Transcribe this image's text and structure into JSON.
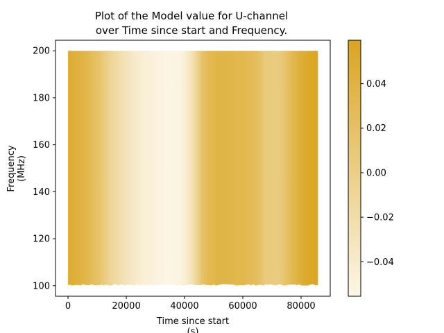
{
  "chart_data": {
    "type": "heatmap",
    "title_lines": [
      "Plot of the Model value for U-channel",
      "over Time since start and Frequency."
    ],
    "xlabel_lines": [
      "Time since start",
      "(s)"
    ],
    "ylabel_lines": [
      "Frequency",
      "(MHz)"
    ],
    "xlim": [
      -4300,
      90000
    ],
    "ylim": [
      95.5,
      204.5
    ],
    "data_x_range": [
      0,
      85800
    ],
    "data_y_range": [
      100,
      200
    ],
    "x_ticks": [
      0,
      20000,
      40000,
      60000,
      80000
    ],
    "x_tick_labels": [
      "0",
      "20000",
      "40000",
      "60000",
      "80000"
    ],
    "y_ticks": [
      100,
      120,
      140,
      160,
      180,
      200
    ],
    "y_tick_labels": [
      "100",
      "120",
      "140",
      "160",
      "180",
      "200"
    ],
    "colorbar": {
      "range": [
        -0.0555,
        0.0595
      ],
      "ticks": [
        -0.04,
        -0.02,
        0.0,
        0.02,
        0.04
      ],
      "tick_labels": [
        "−0.04",
        "−0.02",
        "0.00",
        "0.02",
        "0.04"
      ],
      "color_low": "#fcf6e8",
      "color_high": "#daa520"
    },
    "value_profile": {
      "time": [
        0,
        2000,
        6000,
        10000,
        14000,
        18000,
        22000,
        26000,
        30000,
        34000,
        38000,
        40000,
        42000,
        44000,
        46000,
        48000,
        52000,
        56000,
        60000,
        64000,
        66000,
        68000,
        72000,
        74000,
        76000,
        78000,
        80000,
        83000,
        85800
      ],
      "value": [
        0.048,
        0.045,
        0.036,
        0.02,
        -0.005,
        -0.022,
        -0.036,
        -0.045,
        -0.05,
        -0.054,
        -0.052,
        -0.047,
        -0.032,
        -0.01,
        0.015,
        0.03,
        0.038,
        0.036,
        0.033,
        0.027,
        0.018,
        0.006,
        0.004,
        0.012,
        0.026,
        0.036,
        0.046,
        0.055,
        0.058
      ]
    }
  }
}
